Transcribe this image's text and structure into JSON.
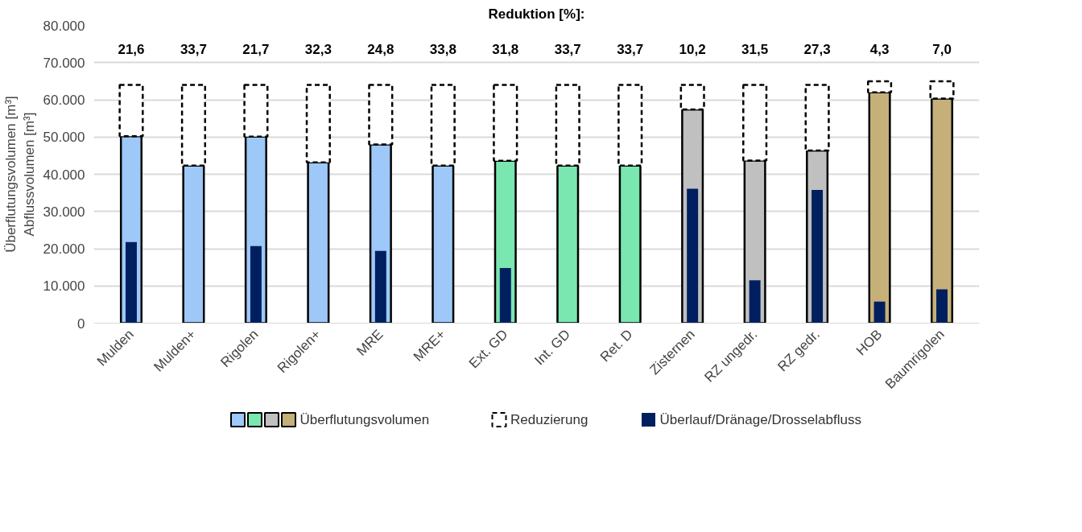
{
  "chart_data": {
    "type": "bar",
    "title": "Reduktion [%]:",
    "ylabel": "Überflutungsvolumen [m³]\nAbflussvolumen [m³]",
    "categories": [
      "Mulden",
      "Mulden+",
      "Rigolen",
      "Rigolen+",
      "MRE",
      "MRE+",
      "Ext. GD",
      "Int. GD",
      "Ret. D",
      "Zisternen",
      "RZ ungedr.",
      "RZ gedr.",
      "HOB",
      "Baumrigolen"
    ],
    "series": [
      {
        "name": "Überflutungsvolumen",
        "colors": [
          "#9dc8f8",
          "#9dc8f8",
          "#9dc8f8",
          "#9dc8f8",
          "#9dc8f8",
          "#9dc8f8",
          "#7ae6b0",
          "#7ae6b0",
          "#7ae6b0",
          "#c0c0c0",
          "#c0c0c0",
          "#c0c0c0",
          "#c4b078",
          "#c4b078"
        ],
        "values": [
          50200,
          42300,
          50100,
          43200,
          48000,
          42300,
          43600,
          42300,
          42300,
          57400,
          43700,
          46400,
          62000,
          60300
        ]
      },
      {
        "name": "Reduzierung",
        "color": "#ffffff",
        "line_style": "dashed",
        "base": [
          50200,
          42300,
          50100,
          43200,
          48000,
          42300,
          43600,
          42300,
          42300,
          57400,
          43700,
          46400,
          62000,
          60300
        ],
        "values": [
          13800,
          21700,
          13900,
          20800,
          16000,
          21700,
          20400,
          21700,
          21700,
          6600,
          20300,
          17600,
          3000,
          4700
        ]
      },
      {
        "name": "Überlauf/Dränage/Drosselabfluss",
        "color": "#001f5f",
        "values": [
          21800,
          null,
          20700,
          null,
          19400,
          null,
          14800,
          null,
          null,
          36100,
          11500,
          35800,
          5800,
          9100
        ]
      }
    ],
    "annotations": [
      "21,6",
      "33,7",
      "21,7",
      "32,3",
      "24,8",
      "33,8",
      "31,8",
      "33,7",
      "33,7",
      "10,2",
      "31,5",
      "27,3",
      "4,3",
      "7,0"
    ],
    "ylim": [
      0,
      80000
    ],
    "yticks": [
      {
        "value": 0,
        "label": "0"
      },
      {
        "value": 10000,
        "label": "10.000"
      },
      {
        "value": 20000,
        "label": "20.000"
      },
      {
        "value": 30000,
        "label": "30.000"
      },
      {
        "value": 40000,
        "label": "40.000"
      },
      {
        "value": 50000,
        "label": "50.000"
      },
      {
        "value": 60000,
        "label": "60.000"
      },
      {
        "value": 70000,
        "label": "70.000"
      },
      {
        "value": 80000,
        "label": "80.000"
      }
    ],
    "grid": "y",
    "legend": "bottom"
  }
}
